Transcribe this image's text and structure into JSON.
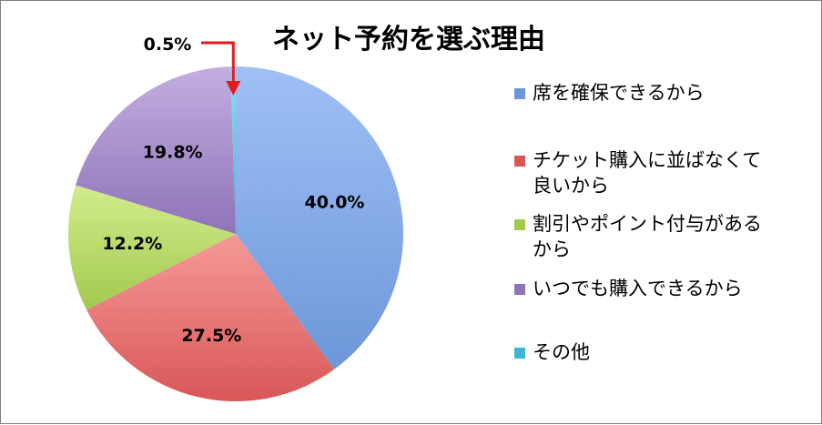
{
  "chart_data": {
    "type": "pie",
    "title": "ネット予約を選ぶ理由",
    "legend_position": "right",
    "slices": [
      {
        "label": "席を確保できるから",
        "legend_lines": [
          "席を確保できるから"
        ],
        "value": 40.0,
        "value_label": "40.0%",
        "color": "#6d97d9",
        "color_light": "#9fc0f5"
      },
      {
        "label": "チケット購入に並ばなくて良いから",
        "legend_lines": [
          "チケット購入に並ばなくて",
          "良いから"
        ],
        "value": 27.5,
        "value_label": "27.5%",
        "color": "#d95757",
        "color_light": "#f59a98"
      },
      {
        "label": "割引やポイント付与があるから",
        "legend_lines": [
          "割引やポイント付与がある",
          "から"
        ],
        "value": 12.2,
        "value_label": "12.2%",
        "color": "#a3c94f",
        "color_light": "#d2ec8c"
      },
      {
        "label": "いつでも購入できるから",
        "legend_lines": [
          "いつでも購入できるから"
        ],
        "value": 19.8,
        "value_label": "19.8%",
        "color": "#8e73b8",
        "color_light": "#c3aee0"
      },
      {
        "label": "その他",
        "legend_lines": [
          "その他"
        ],
        "value": 0.5,
        "value_label": "0.5%",
        "color": "#3fb4d4",
        "color_light": "#8ee0f2"
      }
    ],
    "callout": {
      "slice_index": 4,
      "arrow_color": "#e8191d"
    }
  }
}
